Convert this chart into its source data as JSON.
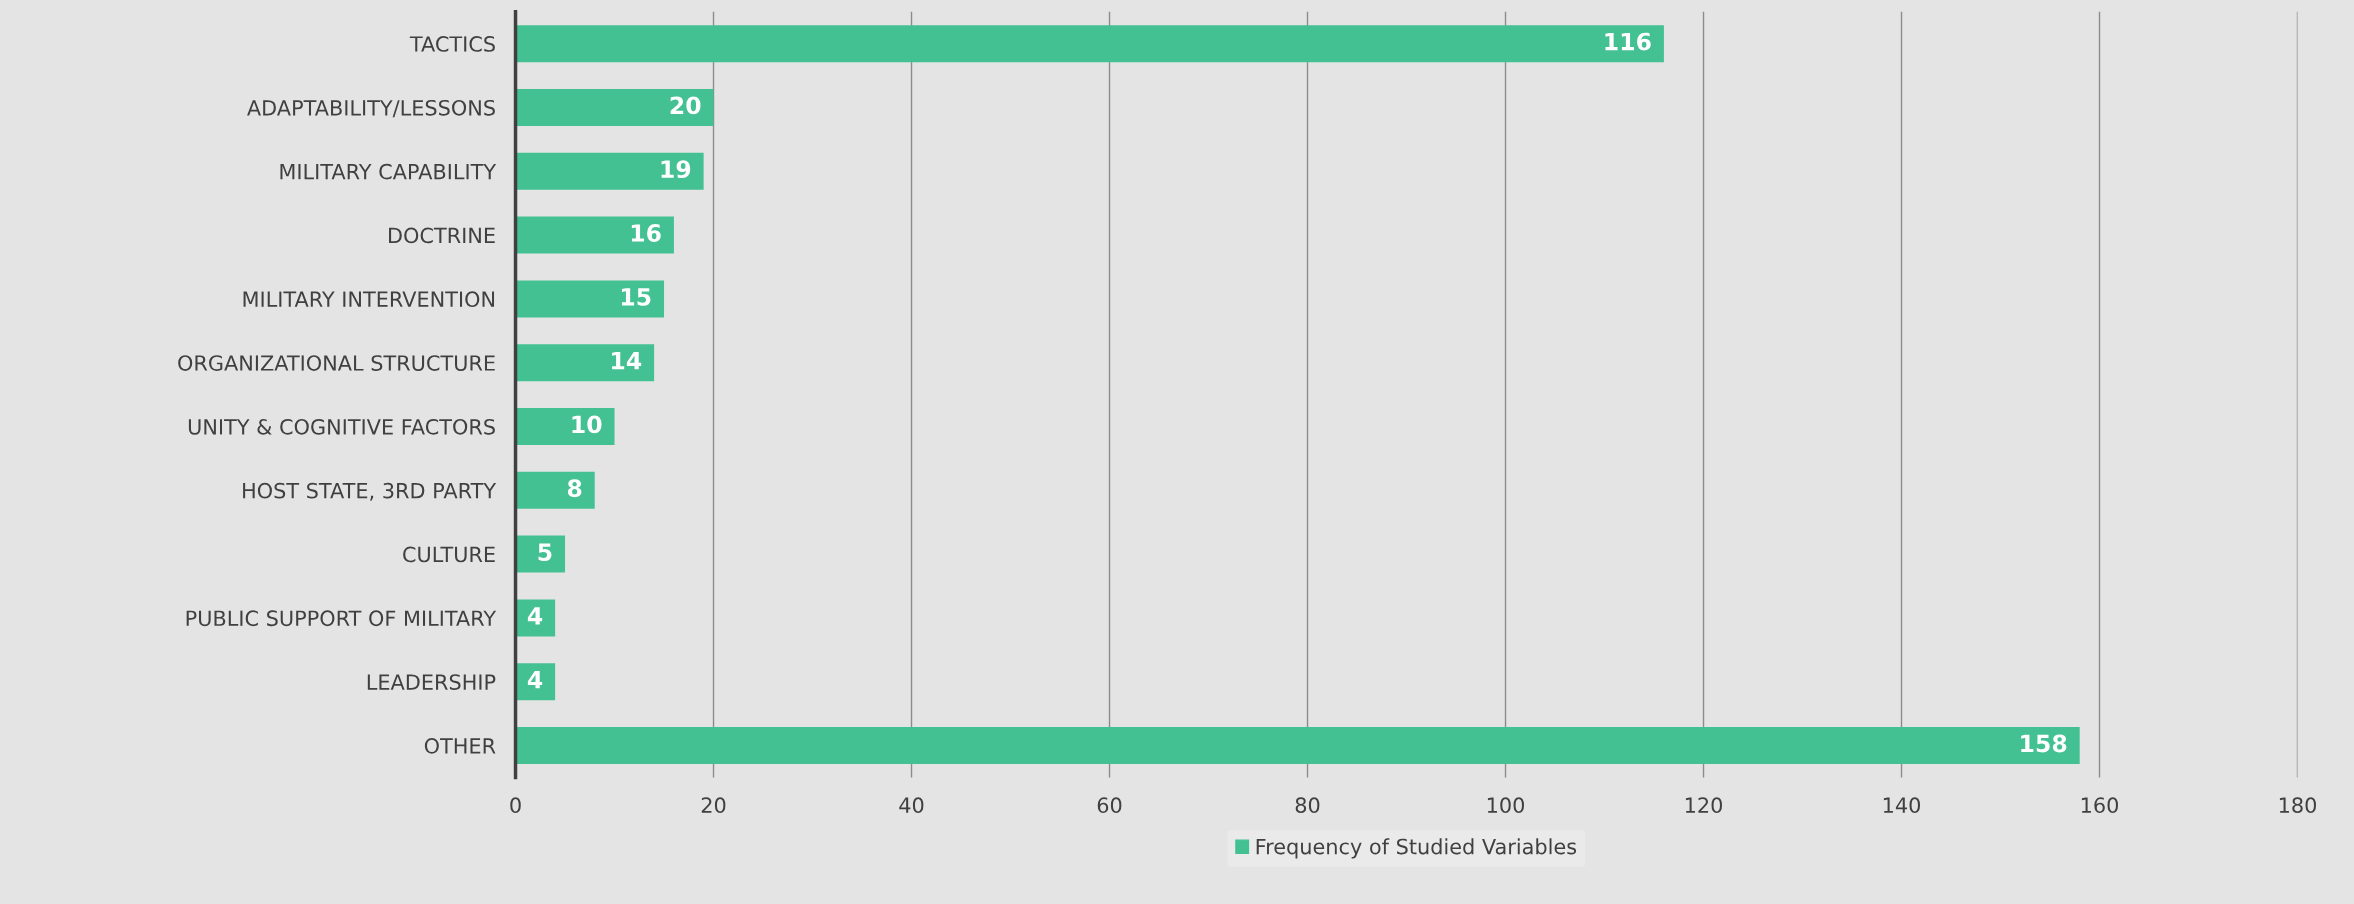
{
  "chart_data": {
    "type": "bar",
    "orientation": "horizontal",
    "categories": [
      "TACTICS",
      "ADAPTABILITY/LESSONS",
      "MILITARY CAPABILITY",
      "DOCTRINE",
      "MILITARY INTERVENTION",
      "ORGANIZATIONAL STRUCTURE",
      "UNITY & COGNITIVE FACTORS",
      "HOST STATE, 3RD PARTY",
      "CULTURE",
      "PUBLIC SUPPORT OF MILITARY",
      "LEADERSHIP",
      "OTHER"
    ],
    "series": [
      {
        "name": "Frequency of Studied Variables",
        "color": "#43c193",
        "values": [
          116,
          20,
          19,
          16,
          15,
          14,
          10,
          8,
          5,
          4,
          4,
          158
        ]
      }
    ],
    "xlim": [
      0,
      180
    ],
    "xticks": [
      0,
      20,
      40,
      60,
      80,
      100,
      120,
      140,
      160,
      180
    ],
    "grid": "x",
    "legend": "bottom",
    "data_labels": true
  }
}
